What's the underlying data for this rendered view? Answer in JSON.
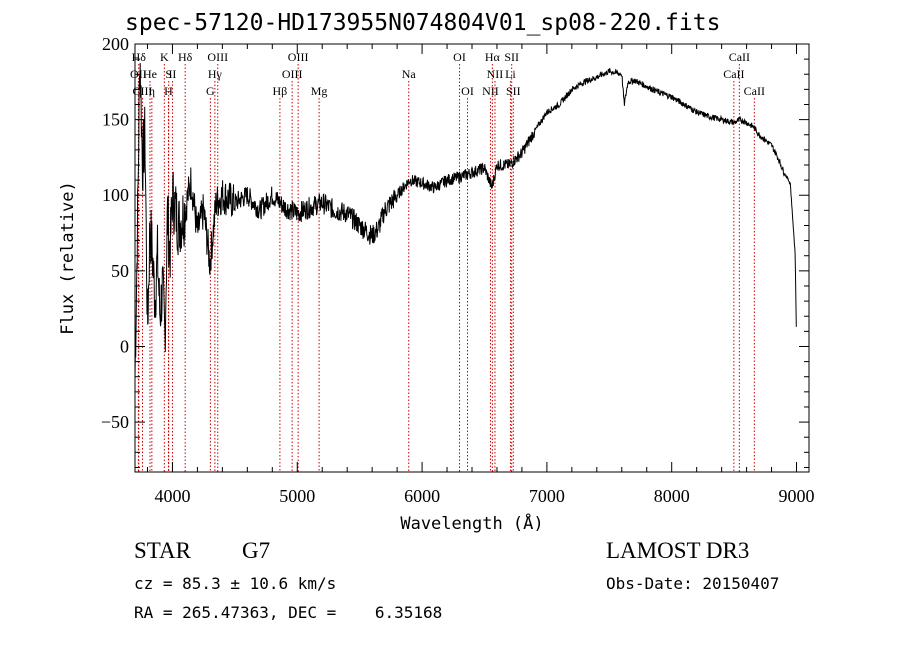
{
  "chart_data": {
    "type": "line",
    "title": "spec-57120-HD173955N074804V01_sp08-220.fits",
    "xlabel": "Wavelength (Å)",
    "ylabel": "Flux (relative)",
    "xlim": [
      3700,
      9100
    ],
    "ylim": [
      -83,
      200
    ],
    "xticks": [
      4000,
      5000,
      6000,
      7000,
      8000,
      9000
    ],
    "yticks": [
      -50,
      0,
      50,
      100,
      150,
      200
    ],
    "series": [
      {
        "name": "spectrum",
        "x": [
          3700,
          3720,
          3740,
          3760,
          3780,
          3800,
          3820,
          3840,
          3860,
          3880,
          3900,
          3920,
          3940,
          3960,
          3980,
          4000,
          4050,
          4100,
          4150,
          4200,
          4250,
          4300,
          4350,
          4400,
          4500,
          4600,
          4700,
          4800,
          4860,
          4900,
          5000,
          5100,
          5200,
          5300,
          5400,
          5500,
          5600,
          5650,
          5700,
          5800,
          5900,
          6000,
          6100,
          6200,
          6300,
          6400,
          6500,
          6560,
          6600,
          6700,
          6800,
          6900,
          7000,
          7100,
          7200,
          7300,
          7400,
          7500,
          7600,
          7620,
          7650,
          7700,
          7800,
          7900,
          8000,
          8100,
          8200,
          8300,
          8400,
          8500,
          8550,
          8600,
          8660,
          8700,
          8800,
          8850,
          8900,
          8950,
          8990,
          9000
        ],
        "y": [
          -20,
          80,
          195,
          120,
          140,
          10,
          80,
          60,
          30,
          60,
          20,
          40,
          5,
          90,
          60,
          100,
          80,
          90,
          110,
          75,
          90,
          55,
          95,
          100,
          95,
          100,
          90,
          100,
          95,
          92,
          88,
          92,
          95,
          90,
          88,
          80,
          73,
          78,
          90,
          100,
          110,
          108,
          105,
          110,
          112,
          115,
          118,
          105,
          120,
          120,
          128,
          142,
          155,
          160,
          170,
          175,
          178,
          182,
          180,
          160,
          175,
          176,
          172,
          168,
          165,
          160,
          155,
          152,
          150,
          148,
          150,
          148,
          145,
          140,
          133,
          125,
          115,
          108,
          60,
          0
        ]
      }
    ],
    "lines": [
      {
        "label": "Hδ",
        "x": 3730,
        "row": 0
      },
      {
        "label": "K",
        "x": 3935,
        "row": 0
      },
      {
        "label": "Hδ",
        "x": 4102,
        "row": 0
      },
      {
        "label": "OIII",
        "x": 4363,
        "row": 0
      },
      {
        "label": "OIII",
        "x": 5007,
        "row": 0
      },
      {
        "label": "OI",
        "x": 6300,
        "row": 0
      },
      {
        "label": "Hα",
        "x": 6563,
        "row": 0
      },
      {
        "label": "SII",
        "x": 6718,
        "row": 0
      },
      {
        "label": "CaII",
        "x": 8542,
        "row": 0
      },
      {
        "label": "OII",
        "x": 3727,
        "row": 1
      },
      {
        "label": "He",
        "x": 3820,
        "row": 1
      },
      {
        "label": "S",
        "x": 3970,
        "row": 1
      },
      {
        "label": "II",
        "x": 4000,
        "row": 1
      },
      {
        "label": "Hγ",
        "x": 4340,
        "row": 1
      },
      {
        "label": "OIII",
        "x": 4959,
        "row": 1
      },
      {
        "label": "Na",
        "x": 5893,
        "row": 1
      },
      {
        "label": "NII",
        "x": 6584,
        "row": 1
      },
      {
        "label": "Li",
        "x": 6708,
        "row": 1
      },
      {
        "label": "CaII",
        "x": 8498,
        "row": 1
      },
      {
        "label": "CIII",
        "x": 3760,
        "row": 2
      },
      {
        "label": "η",
        "x": 3835,
        "row": 2
      },
      {
        "label": "H",
        "x": 3968,
        "row": 2
      },
      {
        "label": "G",
        "x": 4304,
        "row": 2
      },
      {
        "label": "Hβ",
        "x": 4861,
        "row": 2
      },
      {
        "label": "Mg",
        "x": 5175,
        "row": 2
      },
      {
        "label": "OI",
        "x": 6364,
        "row": 2
      },
      {
        "label": "NII",
        "x": 6548,
        "row": 2
      },
      {
        "label": "SII",
        "x": 6731,
        "row": 2
      },
      {
        "label": "CaII",
        "x": 8662,
        "row": 2
      }
    ]
  },
  "footer": {
    "star_type": "STAR",
    "subclass": "G7",
    "survey": "LAMOST DR3",
    "cz": "cz = 85.3 ± 10.6 km/s",
    "obs_date": "Obs-Date: 20150407",
    "radec": "RA = 265.47363, DEC =    6.35168"
  },
  "colors": {
    "axis": "#000000",
    "spectrum": "#000000",
    "lines": "#cc0000"
  }
}
